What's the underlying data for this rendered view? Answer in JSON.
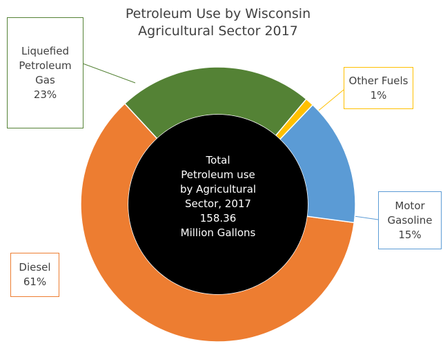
{
  "chart_data": {
    "type": "donut",
    "title": "Petroleum Use by Wisconsin Agricultural Sector 2017",
    "center_text": [
      "Total",
      "Petroleum use",
      "by Agricultural",
      "Sector, 2017",
      "158.36",
      "Million Gallons"
    ],
    "categories": [
      "Diesel",
      "Liquefied Petroleum Gas",
      "Other Fuels",
      "Motor Gasoline"
    ],
    "values": [
      61,
      23,
      1,
      15
    ],
    "value_labels": [
      "61%",
      "23%",
      "1%",
      "15%"
    ],
    "colors": [
      "#ED7D31",
      "#548235",
      "#FFC000",
      "#5B9BD5"
    ]
  }
}
